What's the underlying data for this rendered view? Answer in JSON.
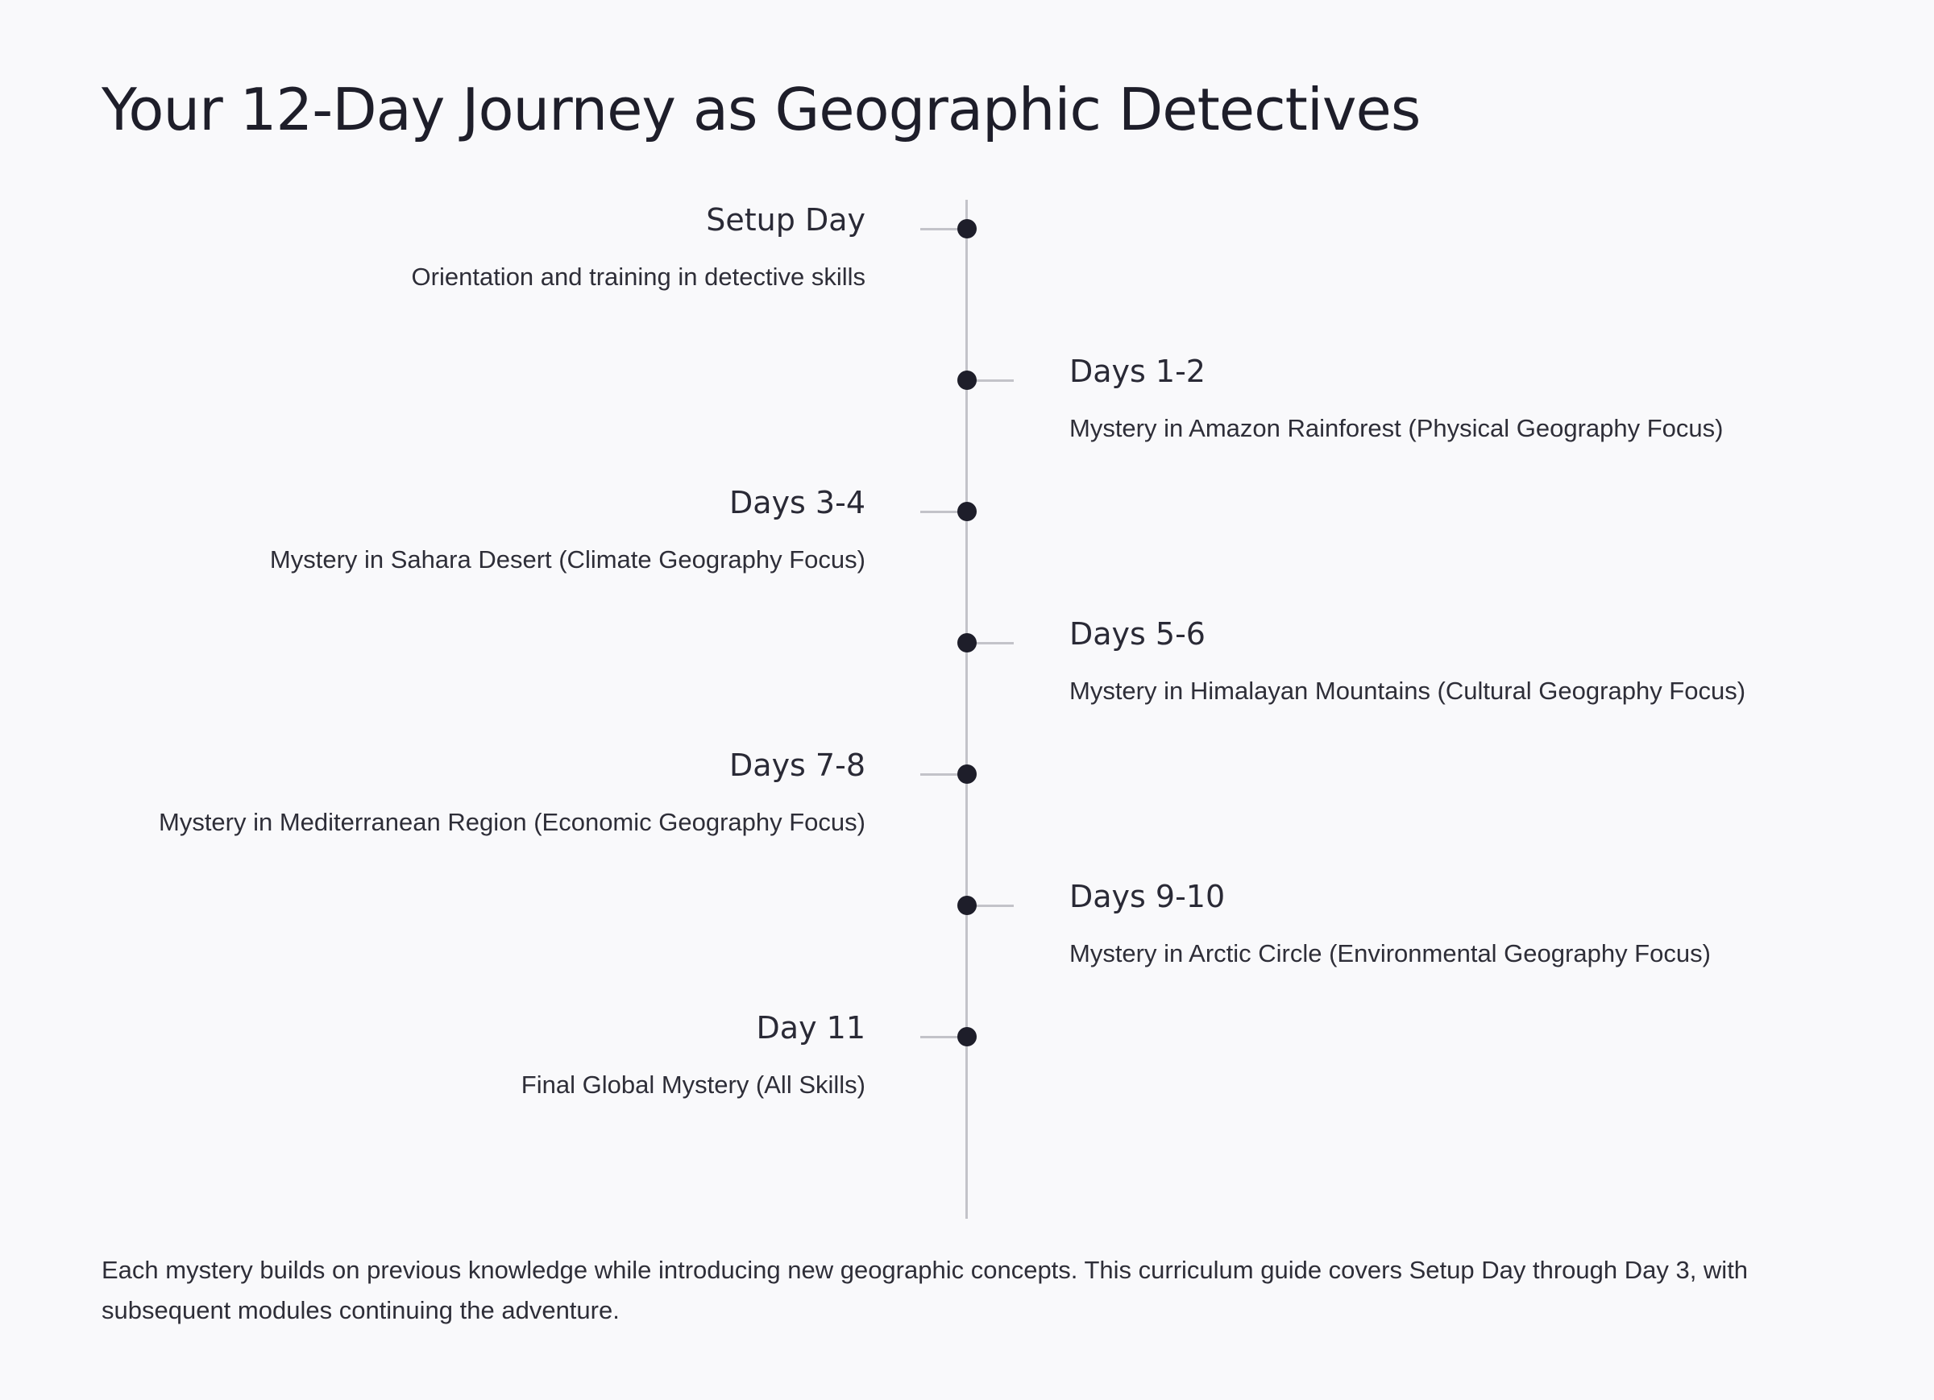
{
  "page": {
    "title": "Your 12-Day Journey as Geographic Detectives",
    "footer": "Each mystery builds on previous knowledge while introducing new geographic concepts. This curriculum guide covers Setup Day through Day 3, with subsequent modules continuing the adventure."
  },
  "timeline": {
    "items": [
      {
        "title": "Setup Day",
        "description": "Orientation and training in detective skills",
        "side": "left"
      },
      {
        "title": "Days 1-2",
        "description": "Mystery in Amazon Rainforest (Physical Geography Focus)",
        "side": "right"
      },
      {
        "title": "Days 3-4",
        "description": "Mystery in Sahara Desert (Climate Geography Focus)",
        "side": "left"
      },
      {
        "title": "Days 5-6",
        "description": "Mystery in Himalayan Mountains (Cultural Geography Focus)",
        "side": "right"
      },
      {
        "title": "Days 7-8",
        "description": "Mystery in Mediterranean Region (Economic Geography Focus)",
        "side": "left"
      },
      {
        "title": "Days 9-10",
        "description": "Mystery in Arctic Circle (Environmental Geography Focus)",
        "side": "right"
      },
      {
        "title": "Day 11",
        "description": "Final Global Mystery (All Skills)",
        "side": "left"
      }
    ]
  },
  "colors": {
    "background": "#f9f9fb",
    "text": "#1e1e2a",
    "axis": "#c3c3c9",
    "marker": "#1e1e2a"
  }
}
